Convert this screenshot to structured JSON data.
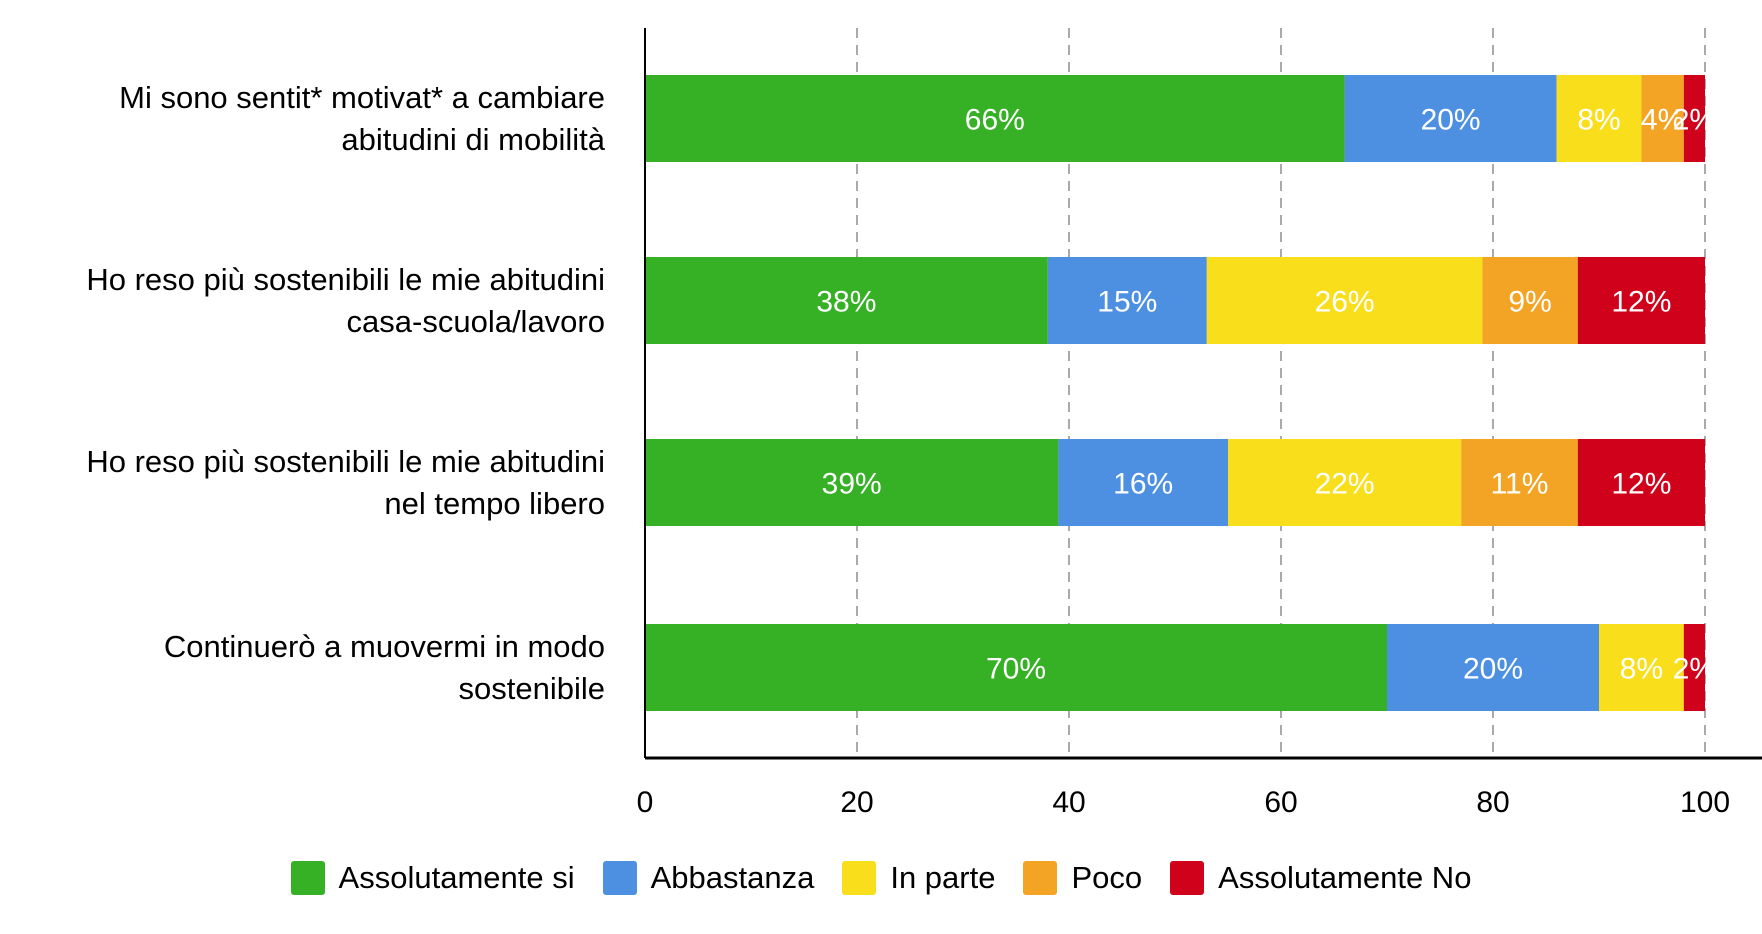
{
  "chart_data": {
    "type": "bar",
    "orientation": "horizontal",
    "stacked": true,
    "categories": [
      "Mi sono sentit* motivat* a cambiare abitudini di mobilità",
      "Ho reso più sostenibili le mie abitudini casa-scuola/lavoro",
      "Ho reso più sostenibili le mie abitudini nel tempo libero",
      "Continuerò a muovermi in modo sostenibile"
    ],
    "category_lines": [
      [
        "Mi sono sentit* motivat* a cambiare",
        "abitudini di mobilità"
      ],
      [
        "Ho reso più sostenibili le mie abitudini",
        "casa-scuola/lavoro"
      ],
      [
        "Ho reso più sostenibili le mie abitudini",
        "nel tempo libero"
      ],
      [
        "Continuerò a muovermi in modo",
        "sostenibile"
      ]
    ],
    "series": [
      {
        "name": "Assolutamente si",
        "color": "#36b025",
        "values": [
          66,
          38,
          39,
          70
        ]
      },
      {
        "name": "Abbastanza",
        "color": "#4d90e2",
        "values": [
          20,
          15,
          16,
          20
        ]
      },
      {
        "name": "In parte",
        "color": "#f9df1b",
        "values": [
          8,
          26,
          22,
          8
        ]
      },
      {
        "name": "Poco",
        "color": "#f4a425",
        "values": [
          4,
          9,
          11,
          0
        ]
      },
      {
        "name": "Assolutamente No",
        "color": "#d0021b",
        "values": [
          2,
          12,
          12,
          2
        ]
      }
    ],
    "data_label_suffix": "%",
    "xlim": [
      0,
      100
    ],
    "xticks": [
      0,
      20,
      40,
      60,
      80,
      100
    ],
    "grid": "vertical dashed",
    "legend": "bottom"
  }
}
